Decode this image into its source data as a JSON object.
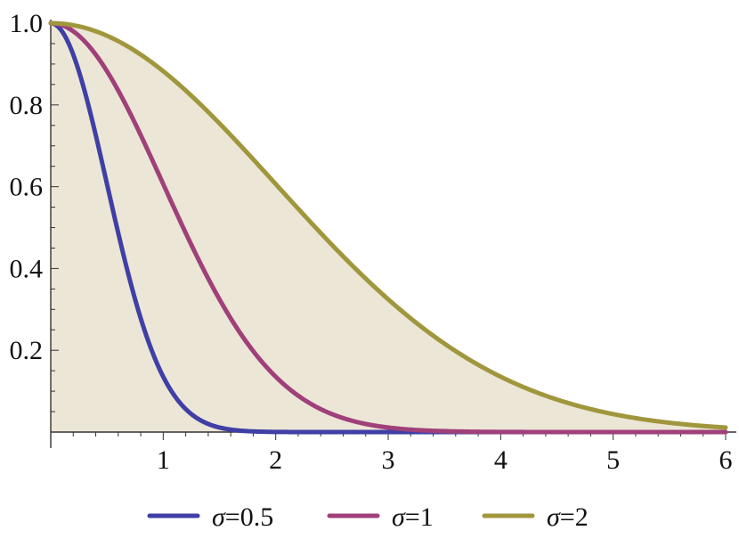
{
  "chart_data": {
    "type": "line",
    "function": "exp(-x^2/(2*sigma^2))",
    "xlim": [
      0,
      6
    ],
    "ylim": [
      0,
      1
    ],
    "x_ticks": [
      1,
      2,
      3,
      4,
      5,
      6
    ],
    "y_ticks": [
      0.2,
      0.4,
      0.6,
      0.8,
      1.0
    ],
    "x_tick_labels": [
      "1",
      "2",
      "3",
      "4",
      "5",
      "6"
    ],
    "y_tick_labels": [
      "0.2",
      "0.4",
      "0.6",
      "0.8",
      "1.0"
    ],
    "fill_under": "σ=2",
    "grid": false,
    "legend_position": "bottom",
    "series": [
      {
        "name": "σ=0.5",
        "sigma": 0.5,
        "color": "#3f3fa6"
      },
      {
        "name": "σ=1",
        "sigma": 1,
        "color": "#a0407a"
      },
      {
        "name": "σ=2",
        "sigma": 2,
        "color": "#a0963c"
      }
    ],
    "fill_color": "#ece6d7"
  },
  "legend": {
    "items": [
      {
        "symbol": "σ",
        "text": "=0.5"
      },
      {
        "symbol": "σ",
        "text": "=1"
      },
      {
        "symbol": "σ",
        "text": "=2"
      }
    ]
  }
}
